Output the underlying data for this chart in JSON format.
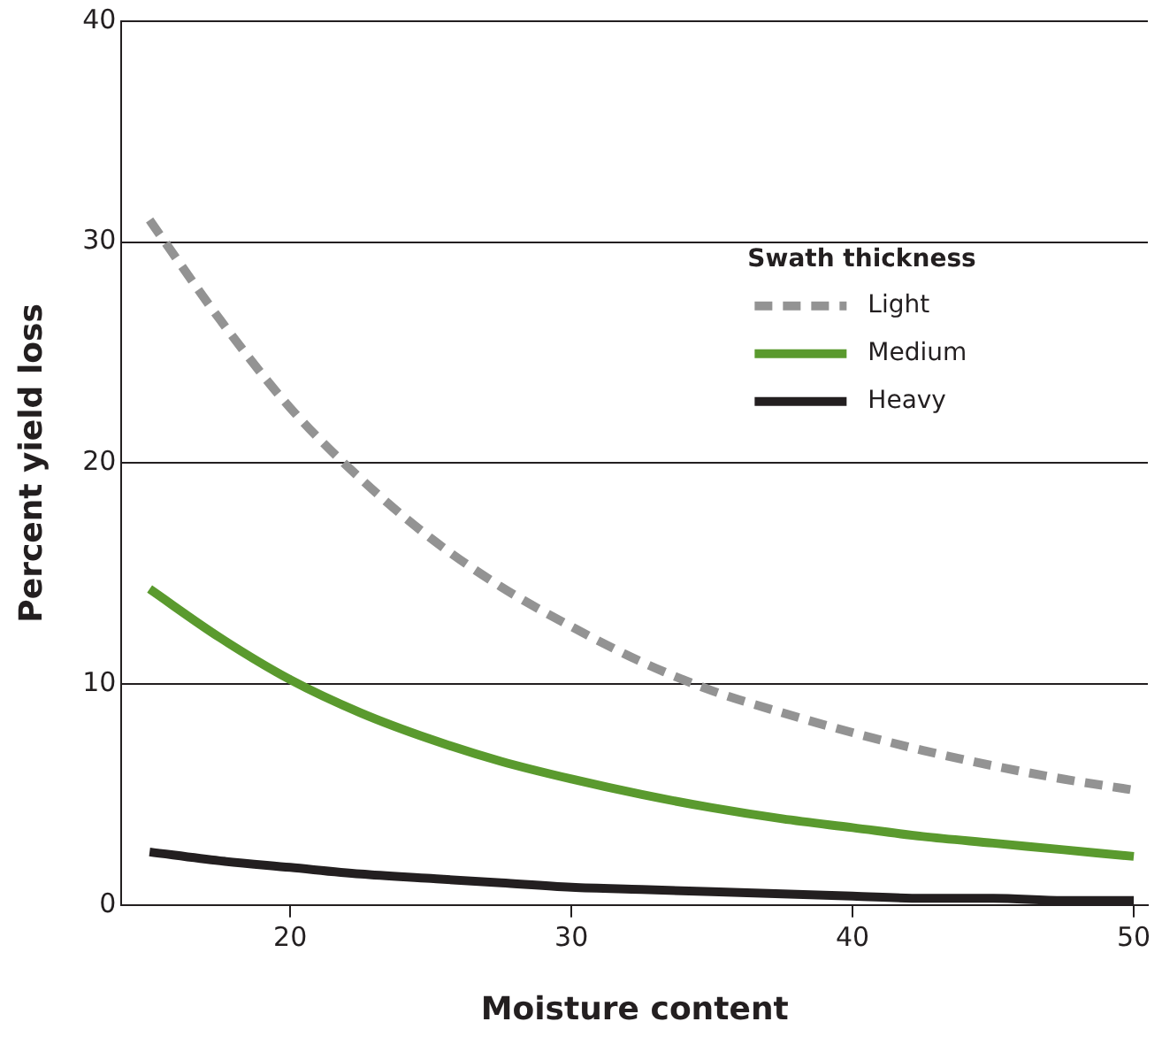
{
  "chart_data": {
    "type": "line",
    "xlabel": "Moisture content",
    "ylabel": "Percent yield loss",
    "legend_title": "Swath thickness",
    "legend": "top right",
    "grid": "y",
    "marker": "none",
    "xlim": [
      14,
      50.5
    ],
    "xticks": [
      20,
      30,
      40,
      50
    ],
    "ylim": [
      0,
      40
    ],
    "yticks": [
      0,
      10,
      20,
      30,
      40
    ],
    "x": [
      15,
      17.5,
      20,
      22.5,
      25,
      27.5,
      30,
      32.5,
      35,
      37.5,
      40,
      42.5,
      45,
      47.5,
      50
    ],
    "series": [
      {
        "name": "Light",
        "color": "#939393",
        "line_style": "dashed",
        "values": [
          31,
          26.5,
          22.5,
          19.3,
          16.6,
          14.4,
          12.6,
          11,
          9.7,
          8.7,
          7.8,
          7,
          6.3,
          5.7,
          5.2
        ]
      },
      {
        "name": "Medium",
        "color": "#5a9a2e",
        "line_style": "solid",
        "values": [
          14.3,
          12.1,
          10.2,
          8.7,
          7.5,
          6.5,
          5.7,
          5,
          4.4,
          3.9,
          3.5,
          3.1,
          2.8,
          2.5,
          2.2
        ]
      },
      {
        "name": "Heavy",
        "color": "#231f20",
        "line_style": "solid",
        "values": [
          2.4,
          2,
          1.7,
          1.4,
          1.2,
          1,
          0.8,
          0.7,
          0.6,
          0.5,
          0.4,
          0.3,
          0.3,
          0.2,
          0.2
        ]
      }
    ]
  }
}
